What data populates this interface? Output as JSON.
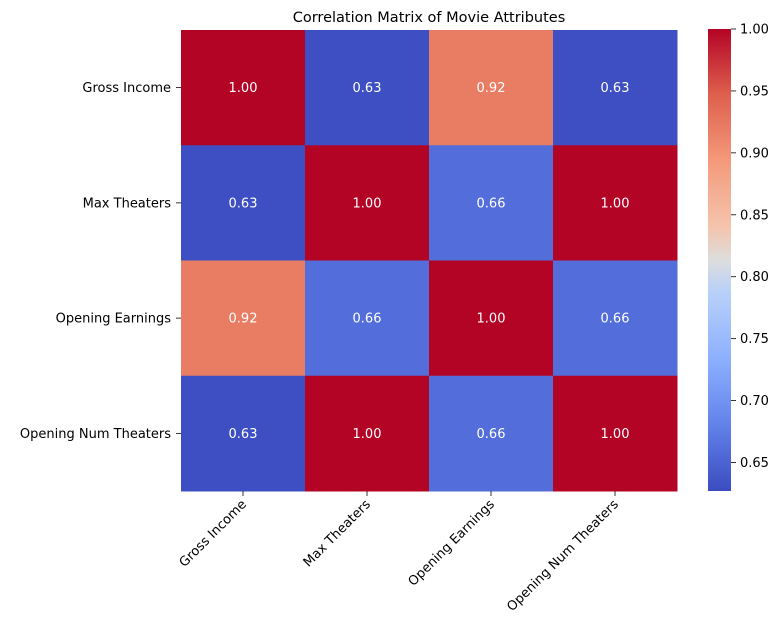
{
  "chart_data": {
    "type": "heatmap",
    "title": "Correlation Matrix of Movie Attributes",
    "xlabel": "",
    "ylabel": "",
    "row_labels": [
      "Gross Income",
      "Max Theaters",
      "Opening Earnings",
      "Opening Num Theaters"
    ],
    "col_labels": [
      "Gross Income",
      "Max Theaters",
      "Opening Earnings",
      "Opening Num Theaters"
    ],
    "values": [
      [
        1.0,
        0.63,
        0.92,
        0.63
      ],
      [
        0.63,
        1.0,
        0.66,
        1.0
      ],
      [
        0.92,
        0.66,
        1.0,
        0.66
      ],
      [
        0.63,
        1.0,
        0.66,
        1.0
      ]
    ],
    "colormap": "coolwarm",
    "colorbar_range": [
      0.627,
      1.0
    ],
    "colorbar_ticks": [
      "0.65",
      "0.70",
      "0.75",
      "0.80",
      "0.85",
      "0.90",
      "0.95",
      "1.00"
    ],
    "annotation_color": "#ffffff"
  }
}
